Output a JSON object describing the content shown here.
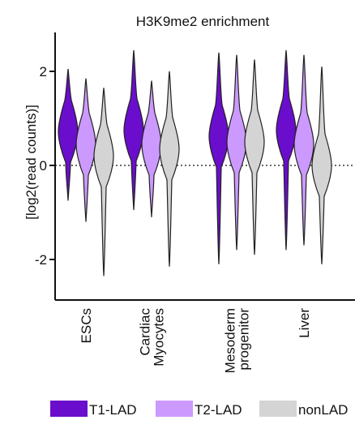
{
  "chart_data": {
    "type": "violin",
    "title": "H3K9me2 enrichment",
    "ylabel": "[log2(read counts)]",
    "ylim": [
      -2.6,
      2.6
    ],
    "yticks": [
      {
        "value": 2,
        "label": "2"
      },
      {
        "value": 0,
        "label": "0"
      },
      {
        "value": -2,
        "label": "-2"
      }
    ],
    "reference_line": {
      "value": 0,
      "style": "dotted"
    },
    "categories": [
      {
        "lines": [
          "ESCs"
        ]
      },
      {
        "lines": [
          "Cardiac",
          "Myocytes"
        ]
      },
      {
        "lines": [
          "Mesoderm",
          "progenitor"
        ]
      },
      {
        "lines": [
          "Liver"
        ]
      }
    ],
    "series": [
      {
        "name": "T1-LAD",
        "color": "#6a0dcc",
        "violins": [
          {
            "min": -0.75,
            "max": 2.05,
            "mode": 0.72
          },
          {
            "min": -0.95,
            "max": 2.45,
            "mode": 0.75
          },
          {
            "min": -2.1,
            "max": 2.4,
            "mode": 0.62
          },
          {
            "min": -1.8,
            "max": 2.45,
            "mode": 0.75
          }
        ]
      },
      {
        "name": "T2-LAD",
        "color": "#cc99ff",
        "violins": [
          {
            "min": -1.2,
            "max": 1.85,
            "mode": 0.45
          },
          {
            "min": -1.1,
            "max": 1.8,
            "mode": 0.45
          },
          {
            "min": -1.8,
            "max": 2.35,
            "mode": 0.5
          },
          {
            "min": -1.7,
            "max": 2.35,
            "mode": 0.45
          }
        ]
      },
      {
        "name": "nonLAD",
        "color": "#d4d4d4",
        "violins": [
          {
            "min": -2.35,
            "max": 1.65,
            "mode": 0.2
          },
          {
            "min": -2.15,
            "max": 2.0,
            "mode": 0.35
          },
          {
            "min": -1.9,
            "max": 2.25,
            "mode": 0.5
          },
          {
            "min": -2.1,
            "max": 2.1,
            "mode": 0.0
          }
        ]
      }
    ],
    "legend": {
      "position": "bottom"
    }
  }
}
